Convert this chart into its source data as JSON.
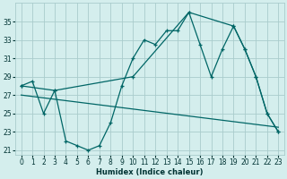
{
  "xlabel": "Humidex (Indice chaleur)",
  "bg_color": "#d4eeed",
  "grid_color": "#aacccc",
  "line_color": "#006666",
  "ylim": [
    20.5,
    37.0
  ],
  "xlim": [
    -0.5,
    23.5
  ],
  "yticks": [
    21,
    23,
    25,
    27,
    29,
    31,
    33,
    35
  ],
  "xticks": [
    0,
    1,
    2,
    3,
    4,
    5,
    6,
    7,
    8,
    9,
    10,
    11,
    12,
    13,
    14,
    15,
    16,
    17,
    18,
    19,
    20,
    21,
    22,
    23
  ],
  "line1_x": [
    0,
    1,
    2,
    3,
    4,
    5,
    6,
    7,
    8,
    9,
    10,
    11,
    12,
    13,
    14,
    15,
    16,
    17,
    18,
    19,
    20,
    21,
    22,
    23
  ],
  "line1_y": [
    28.0,
    28.5,
    25.0,
    27.5,
    22.0,
    21.5,
    21.0,
    21.5,
    24.0,
    28.0,
    31.0,
    33.0,
    32.5,
    34.0,
    34.0,
    36.0,
    32.5,
    29.0,
    32.0,
    34.5,
    32.0,
    29.0,
    25.0,
    23.0
  ],
  "line2_x": [
    0,
    3,
    10,
    15,
    19,
    20,
    21,
    22,
    23
  ],
  "line2_y": [
    28.0,
    27.5,
    29.0,
    36.0,
    34.5,
    32.0,
    29.0,
    25.0,
    23.0
  ],
  "line3_x": [
    0,
    23
  ],
  "line3_y": [
    27.0,
    23.5
  ]
}
